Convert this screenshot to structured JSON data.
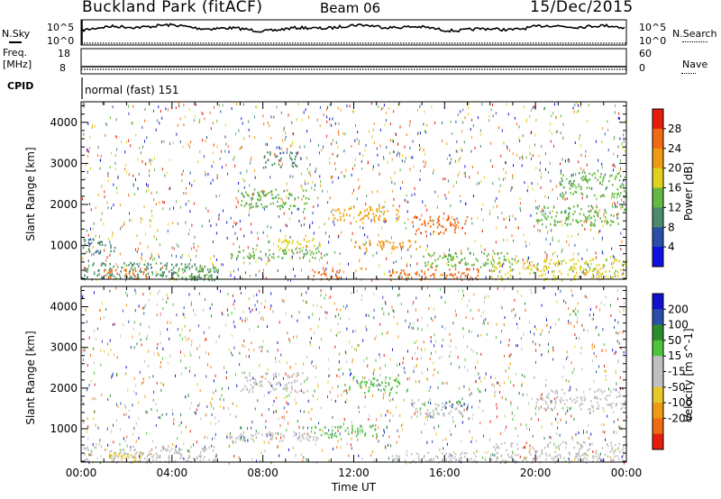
{
  "header": {
    "station": "Buckland Park (fitACF)",
    "beam": "Beam 06",
    "date": "15/Dec/2015"
  },
  "nsky_panel": {
    "left_label": "N.Sky",
    "right_label": "N.Search",
    "left_ticks": [
      "10^5",
      "10^0"
    ],
    "right_ticks": [
      "10^5",
      "10^0"
    ]
  },
  "freq_panel": {
    "left_label_1": "Freq.",
    "left_label_2": "[MHz]",
    "right_label": "Nave",
    "left_ticks": [
      "18",
      "8"
    ],
    "right_ticks": [
      "60",
      "0"
    ]
  },
  "cpid_panel": {
    "label": "CPID",
    "mode_text": "normal (fast) 151"
  },
  "colors": {
    "power": [
      "#1010e0",
      "#2a4fa8",
      "#4a8c6a",
      "#63b842",
      "#e0d21c",
      "#f09a12",
      "#ef6a12",
      "#e81c0c"
    ],
    "velocity": [
      "#e81c0c",
      "#ef6a12",
      "#f09a12",
      "#e8c92c",
      "#c0c0c0",
      "#c0c0c0",
      "#4cc43c",
      "#2a8c2a",
      "#2a4fa8",
      "#1010d0"
    ]
  },
  "chart_data": [
    {
      "type": "heatmap",
      "title": "",
      "xlabel": "",
      "ylabel": "Slant Range [km]",
      "xlim": [
        "00:00",
        "24:00"
      ],
      "ylim": [
        180,
        4500
      ],
      "y_ticks": [
        "1000",
        "2000",
        "3000",
        "4000"
      ],
      "colorbar": {
        "label": "Power [dB]",
        "ticks": [
          "4",
          "8",
          "12",
          "16",
          "20",
          "24",
          "28"
        ],
        "range": [
          0,
          32
        ]
      },
      "regions": [
        {
          "t": [
            0.0,
            1.5
          ],
          "r": [
            800,
            1200
          ],
          "value": 8
        },
        {
          "t": [
            0.0,
            6.0
          ],
          "r": [
            180,
            600
          ],
          "value": 10
        },
        {
          "t": [
            1.0,
            3.0
          ],
          "r": [
            180,
            450
          ],
          "value": 24
        },
        {
          "t": [
            4.0,
            6.0
          ],
          "r": [
            180,
            500
          ],
          "value": 14
        },
        {
          "t": [
            6.5,
            11.0
          ],
          "r": [
            700,
            950
          ],
          "value": 12
        },
        {
          "t": [
            8.5,
            10.5
          ],
          "r": [
            900,
            1200
          ],
          "value": 18
        },
        {
          "t": [
            10.0,
            11.5
          ],
          "r": [
            180,
            450
          ],
          "value": 26
        },
        {
          "t": [
            13.5,
            17.5
          ],
          "r": [
            180,
            450
          ],
          "value": 27
        },
        {
          "t": [
            12.0,
            15.0
          ],
          "r": [
            900,
            1150
          ],
          "value": 22
        },
        {
          "t": [
            14.5,
            17.0
          ],
          "r": [
            1300,
            1750
          ],
          "value": 27
        },
        {
          "t": [
            11.0,
            14.0
          ],
          "r": [
            1600,
            2000
          ],
          "value": 21
        },
        {
          "t": [
            7.0,
            10.0
          ],
          "r": [
            1900,
            2400
          ],
          "value": 12
        },
        {
          "t": [
            8.0,
            9.5
          ],
          "r": [
            2900,
            3300
          ],
          "value": 8
        },
        {
          "t": [
            15.0,
            19.0
          ],
          "r": [
            500,
            850
          ],
          "value": 14
        },
        {
          "t": [
            18.0,
            24.0
          ],
          "r": [
            180,
            700
          ],
          "value": 16
        },
        {
          "t": [
            20.0,
            24.0
          ],
          "r": [
            1500,
            2000
          ],
          "value": 14
        },
        {
          "t": [
            21.0,
            24.0
          ],
          "r": [
            2200,
            2800
          ],
          "value": 12
        }
      ]
    },
    {
      "type": "heatmap",
      "title": "",
      "xlabel": "Time UT",
      "ylabel": "Slant Range [km]",
      "xlim": [
        "00:00",
        "24:00"
      ],
      "ylim": [
        180,
        4500
      ],
      "x_ticks": [
        "00:00",
        "04:00",
        "08:00",
        "12:00",
        "16:00",
        "20:00",
        "00:00"
      ],
      "y_ticks": [
        "1000",
        "2000",
        "3000",
        "4000"
      ],
      "colorbar": {
        "label": "Velocity [m s^-1]",
        "ticks": [
          "200",
          "100",
          "50",
          "15",
          "-15",
          "-50",
          "-100",
          "-200"
        ],
        "range": [
          -250,
          250
        ]
      },
      "regions": [
        {
          "t": [
            0.0,
            6.0
          ],
          "r": [
            180,
            600
          ],
          "value": 0
        },
        {
          "t": [
            1.0,
            3.0
          ],
          "r": [
            180,
            450
          ],
          "value": -60
        },
        {
          "t": [
            6.5,
            11.0
          ],
          "r": [
            700,
            950
          ],
          "value": 0
        },
        {
          "t": [
            10.0,
            13.0
          ],
          "r": [
            800,
            1100
          ],
          "value": 60
        },
        {
          "t": [
            11.5,
            14.0
          ],
          "r": [
            1900,
            2300
          ],
          "value": 60
        },
        {
          "t": [
            13.5,
            17.5
          ],
          "r": [
            180,
            450
          ],
          "value": 0
        },
        {
          "t": [
            14.5,
            17.0
          ],
          "r": [
            1300,
            1750
          ],
          "value": 40
        },
        {
          "t": [
            16.0,
            17.0
          ],
          "r": [
            1500,
            1700
          ],
          "value": 150
        },
        {
          "t": [
            7.0,
            10.0
          ],
          "r": [
            1900,
            2400
          ],
          "value": 0
        },
        {
          "t": [
            18.0,
            24.0
          ],
          "r": [
            180,
            700
          ],
          "value": -20
        },
        {
          "t": [
            20.0,
            24.0
          ],
          "r": [
            1500,
            2000
          ],
          "value": 0
        }
      ]
    }
  ]
}
